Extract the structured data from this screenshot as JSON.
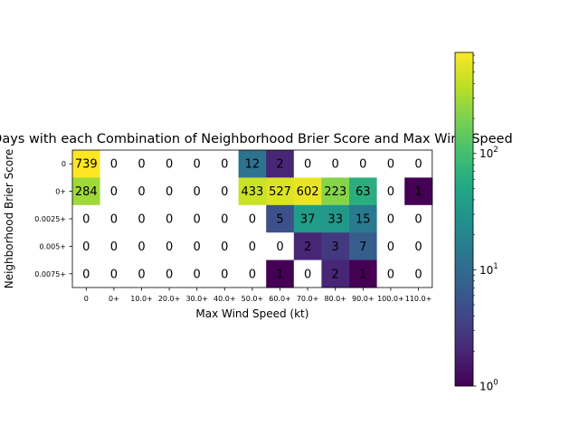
{
  "chart_data": {
    "type": "heatmap",
    "title": "Days with each Combination of Neighborhood Brier Score and Max Wind Speed",
    "xlabel": "Max Wind Speed (kt)",
    "ylabel": "Neighborhood Brier Score",
    "x_categories": [
      "0",
      "0+",
      "10.0+",
      "20.0+",
      "30.0+",
      "40.0+",
      "50.0+",
      "60.0+",
      "70.0+",
      "80.0+",
      "90.0+",
      "100.0+",
      "110.0+"
    ],
    "y_categories": [
      "0",
      "0+",
      "0.0025+",
      "0.005+",
      "0.0075+"
    ],
    "values": [
      [
        739,
        0,
        0,
        0,
        0,
        0,
        12,
        2,
        0,
        0,
        0,
        0,
        0
      ],
      [
        284,
        0,
        0,
        0,
        0,
        0,
        433,
        527,
        602,
        223,
        63,
        0,
        1
      ],
      [
        0,
        0,
        0,
        0,
        0,
        0,
        0,
        5,
        37,
        33,
        15,
        0,
        0
      ],
      [
        0,
        0,
        0,
        0,
        0,
        0,
        0,
        0,
        2,
        3,
        7,
        0,
        0
      ],
      [
        0,
        0,
        0,
        0,
        0,
        0,
        0,
        1,
        0,
        2,
        1,
        0,
        0
      ]
    ],
    "colorbar": {
      "scale": "log",
      "colormap": "viridis",
      "range": [
        1,
        739
      ],
      "ticks": [
        {
          "value": 1,
          "label": "10",
          "exp": "0"
        },
        {
          "value": 10,
          "label": "10",
          "exp": "1"
        },
        {
          "value": 100,
          "label": "10",
          "exp": "2"
        }
      ]
    },
    "zero_color": "#ffffff"
  }
}
